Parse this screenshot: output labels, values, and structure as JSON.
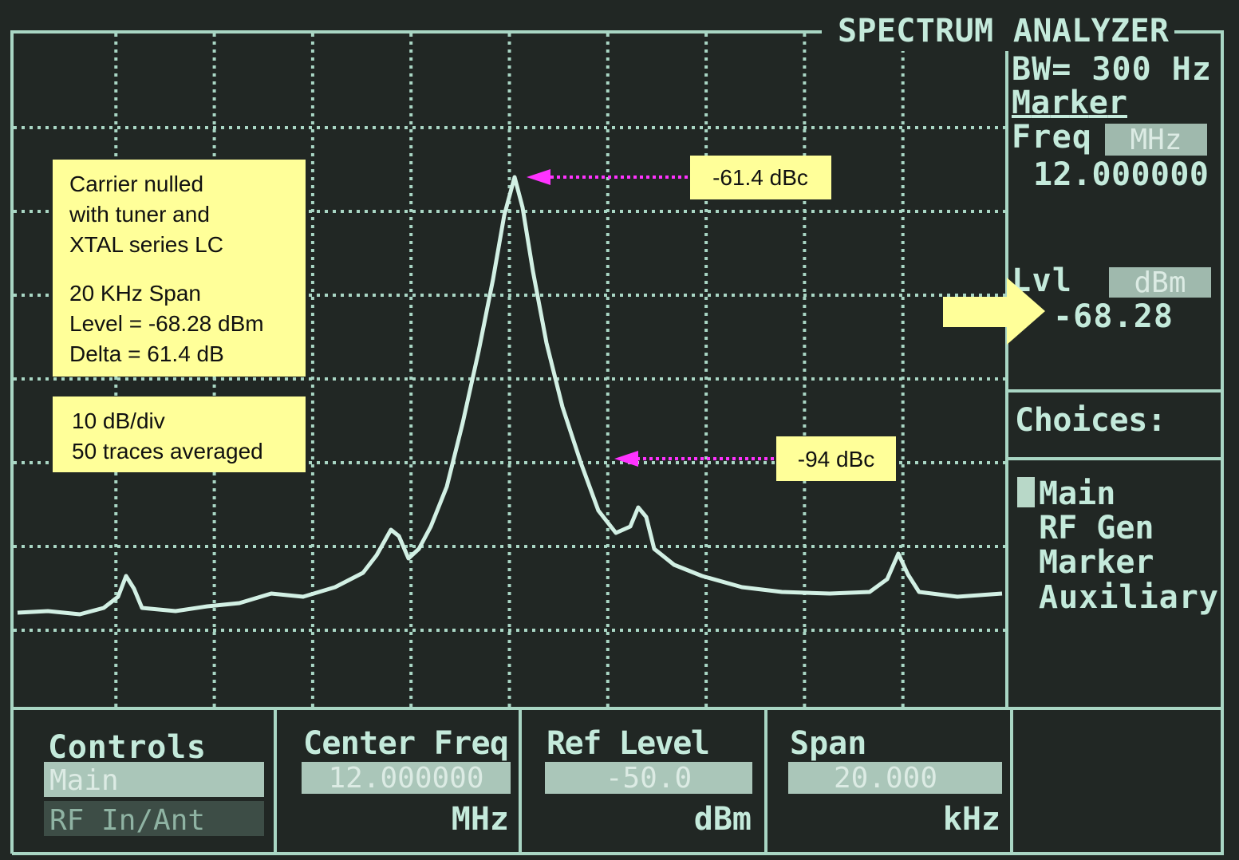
{
  "header": {
    "title": "SPECTRUM ANALYZER"
  },
  "status": {
    "bandwidth": "BW= 300 Hz",
    "marker_title": "Marker",
    "freq_label": "Freq",
    "freq_unit": "MHz",
    "freq_value": "12.000000",
    "level_label": "Lvl",
    "level_unit": "dBm",
    "level_value": "-68.28"
  },
  "choices": {
    "title": "Choices:",
    "items": [
      "Main",
      "RF Gen",
      "Marker",
      "Auxiliary"
    ]
  },
  "controls": [
    {
      "title": "Controls",
      "options": [
        "Main",
        "RF In/Ant"
      ]
    },
    {
      "title": "Center Freq",
      "value": "12.000000",
      "unit": "MHz"
    },
    {
      "title": "Ref Level",
      "value": "-50.0",
      "unit": "dBm"
    },
    {
      "title": "Span",
      "value": "20.000",
      "unit": "kHz"
    }
  ],
  "annotations": {
    "notes": [
      [
        "Carrier nulled",
        "with tuner and",
        "XTAL series LC"
      ],
      [
        "20 KHz Span",
        "Level = -68.28 dBm",
        "Delta = 61.4 dB"
      ],
      [
        "10 dB/div",
        "50 traces averaged"
      ]
    ],
    "peak_label": "-61.4 dBc",
    "sideband_label": "-94 dBc"
  }
}
